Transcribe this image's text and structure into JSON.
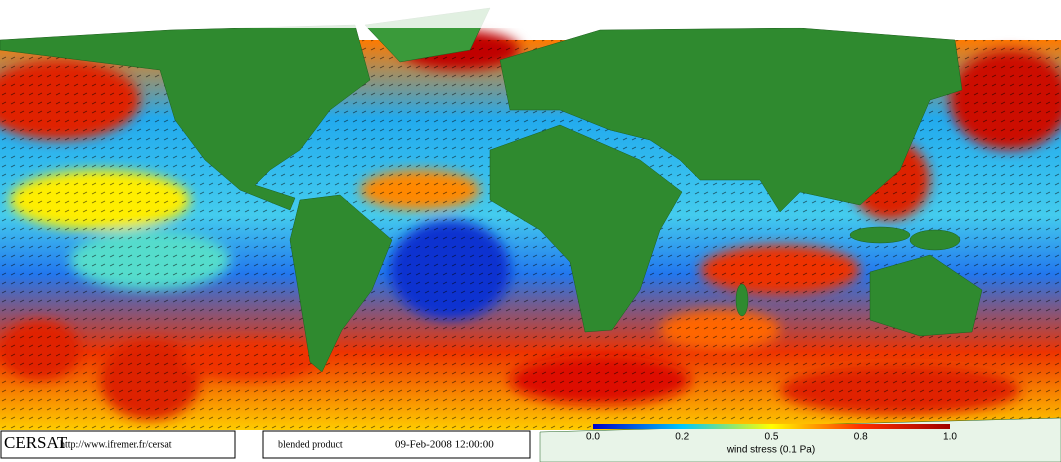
{
  "footer": {
    "logo": "CERSAT",
    "url": "http://www.ifremer.fr/cersat",
    "product": "blended product",
    "timestamp": "09-Feb-2008 12:00:00"
  },
  "colorbar": {
    "ticks": [
      "0.0",
      "0.2",
      "0.5",
      "0.8",
      "1.0"
    ],
    "label": "wind stress (0.1 Pa)"
  }
}
